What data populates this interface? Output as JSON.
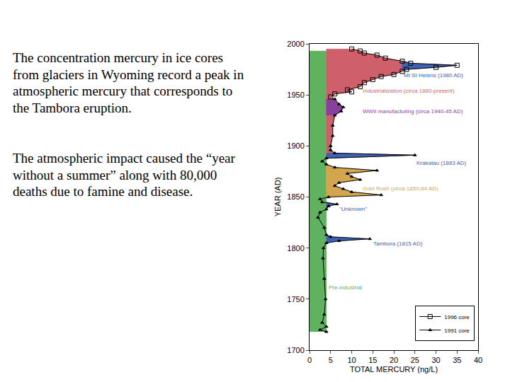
{
  "chart_data": {
    "type": "scatter",
    "x_label": "TOTAL MERCURY (ng/L)",
    "y_label": "YEAR (AD)",
    "xlim": [
      0,
      40
    ],
    "xticks": [
      0,
      5,
      10,
      15,
      20,
      25,
      30,
      35,
      40
    ],
    "ylim": [
      1700,
      2000
    ],
    "yticks": [
      1700,
      1750,
      1800,
      1850,
      1900,
      1950,
      2000
    ],
    "grid": false,
    "legend": "lower right",
    "series": [
      {
        "name": "1996 core",
        "marker": "square",
        "color": "#000000",
        "x": [
          5,
          6,
          10,
          9,
          12,
          13,
          15,
          17,
          20,
          22,
          23,
          30,
          35,
          24,
          22,
          18,
          16,
          13,
          12,
          10
        ],
        "y": [
          1948,
          1951,
          1953,
          1955,
          1958,
          1962,
          1965,
          1968,
          1970,
          1973,
          1975,
          1977,
          1979,
          1981,
          1983,
          1986,
          1989,
          1991,
          1993,
          1995
        ]
      },
      {
        "name": "1991 core",
        "marker": "triangle",
        "color": "#000000",
        "x": [
          4,
          2.5,
          4,
          3,
          3.5,
          3.8,
          3.5,
          3.2,
          3.3,
          4,
          7,
          14.3,
          5,
          4,
          3.5,
          2,
          2.5,
          4,
          4.5,
          6.5,
          3,
          2.5,
          4.5,
          17,
          10,
          8,
          6,
          7,
          12,
          10,
          9,
          16,
          6,
          4,
          3,
          4,
          25,
          6,
          5,
          5,
          5.5,
          5.5,
          6,
          7.5,
          8,
          7,
          6
        ],
        "y": [
          1718,
          1720,
          1723,
          1727,
          1735,
          1750,
          1770,
          1790,
          1800,
          1805,
          1807,
          1809,
          1811,
          1813,
          1820,
          1830,
          1835,
          1838,
          1841,
          1843,
          1845,
          1848,
          1850,
          1852,
          1855,
          1858,
          1861,
          1864,
          1867,
          1870,
          1873,
          1876,
          1879,
          1882,
          1885,
          1888,
          1891,
          1893,
          1896,
          1900,
          1910,
          1920,
          1930,
          1934,
          1938,
          1941,
          1946
        ]
      }
    ],
    "regions": [
      {
        "label": "Pre-industrial",
        "color": "#5fb35f",
        "base": 0,
        "years": [
          1718,
          1993
        ],
        "mercury": [
          4,
          4
        ]
      },
      {
        "label": "Industrialization (circa 1880-present)",
        "color": "#cf5f6a",
        "base": 4,
        "years": [
          1886,
          1888,
          1891,
          1893,
          1896,
          1900,
          1910,
          1920,
          1930,
          1934,
          1938,
          1941,
          1946,
          1948,
          1951,
          1953,
          1955,
          1958,
          1962,
          1965,
          1968,
          1970,
          1973,
          1975,
          1977,
          1979,
          1981,
          1983,
          1986,
          1989,
          1991,
          1993,
          1995
        ],
        "mercury": [
          4,
          4,
          25,
          6,
          5,
          5,
          5.5,
          5.5,
          6,
          7.5,
          8,
          7,
          6,
          5,
          6,
          10,
          9,
          12,
          13,
          15,
          17,
          20,
          22,
          23,
          30,
          35,
          24,
          22,
          18,
          16,
          13,
          12,
          10
        ]
      },
      {
        "label": "Gold Rush (circa 1850-84 AD)",
        "color": "#d3a64e",
        "base": 4,
        "years": [
          1848,
          1850,
          1852,
          1855,
          1858,
          1861,
          1864,
          1867,
          1870,
          1873,
          1876,
          1879,
          1882
        ],
        "mercury": [
          4,
          4.5,
          17,
          10,
          8,
          6,
          7,
          12,
          10,
          9,
          16,
          6,
          4
        ]
      },
      {
        "label": "\"Unknown\"",
        "color": "#3d62b3",
        "base": 4,
        "years": [
          1838,
          1841,
          1843,
          1845
        ],
        "mercury": [
          4,
          4.5,
          6.5,
          4
        ]
      },
      {
        "label": "Tambora (1815 AD)",
        "color": "#3d62b3",
        "base": 4,
        "years": [
          1805,
          1807,
          1809,
          1811,
          1813
        ],
        "mercury": [
          4,
          7,
          14.3,
          5,
          4
        ]
      },
      {
        "label": "Krakatau (1883 AD)",
        "color": "#3d62b3",
        "base": 4,
        "years": [
          1888,
          1891,
          1893
        ],
        "mercury": [
          4,
          25,
          6
        ]
      },
      {
        "label": "WWII manufacturing (circa 1940-45 AD)",
        "color": "#8a3fa0",
        "base": 4,
        "years": [
          1930,
          1934,
          1938,
          1941,
          1946
        ],
        "mercury": [
          6,
          7.5,
          8,
          7,
          6
        ]
      },
      {
        "label": "Mt St Helens (1980 AD)",
        "color": "#3d62b3",
        "base": 22,
        "years": [
          1975,
          1977,
          1979,
          1981,
          1983
        ],
        "mercury": [
          23,
          30,
          35,
          24,
          22
        ]
      }
    ]
  },
  "text": [
    "The concentration mercury in ice cores from glaciers in Wyoming record a peak in atmospheric mercury that corresponds to the Tambora eruption.",
    "The atmospheric impact caused the “year without a summer” along with 80,000 deaths due to famine and disease."
  ]
}
